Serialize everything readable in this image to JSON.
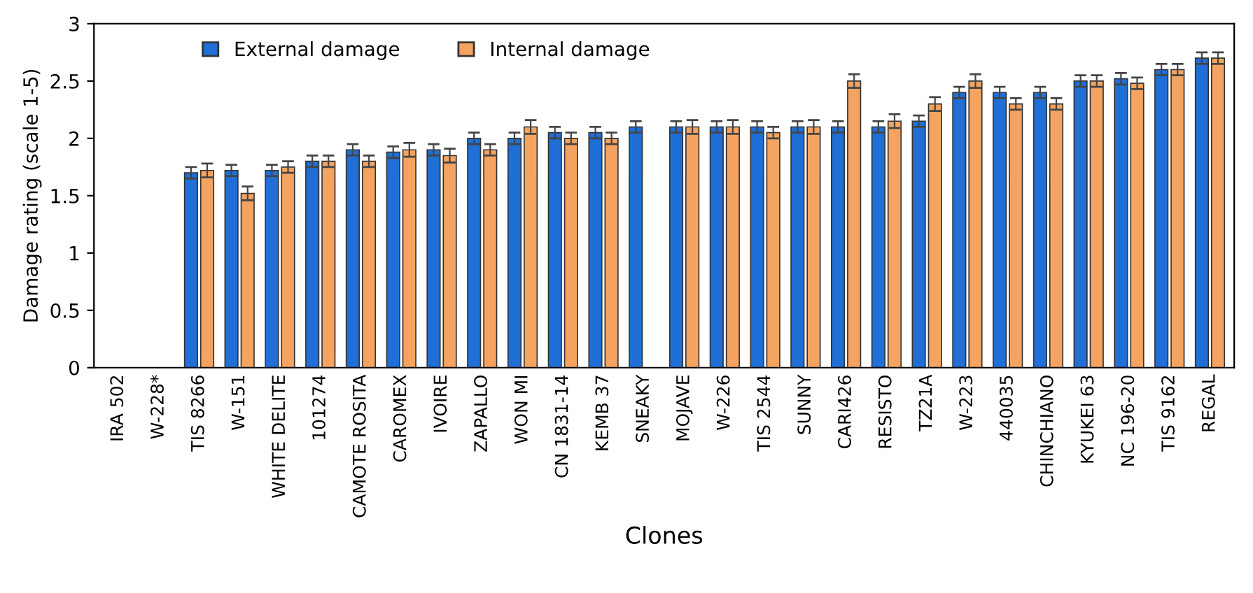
{
  "chart_data": {
    "type": "bar",
    "xlabel": "Clones",
    "ylabel": "Damage rating (scale 1-5)",
    "categories": [
      "IRA 502",
      "W-228*",
      "TIS 8266",
      "W-151",
      "WHITE DELITE",
      "101274",
      "CAMOTE ROSITA",
      "CAROMEX",
      "IVOIRE",
      "ZAPALLO",
      "WON MI",
      "CN 1831-14",
      "KEMB 37",
      "SNEAKY",
      "MOJAVE",
      "W-226",
      "TIS 2544",
      "SUNNY",
      "CARI426",
      "RESISTO",
      "TZ21A",
      "W-223",
      "440035",
      "CHINCHIANO",
      "KYUKEI 63",
      "NC 196-20",
      "TIS 9162",
      "REGAL"
    ],
    "series": [
      {
        "name": "External damage",
        "color": "#1f6fd6",
        "values": [
          null,
          null,
          1.7,
          1.72,
          1.72,
          1.8,
          1.9,
          1.88,
          1.9,
          2.0,
          2.0,
          2.05,
          2.05,
          2.1,
          2.1,
          2.1,
          2.1,
          2.1,
          2.1,
          2.1,
          2.15,
          2.4,
          2.4,
          2.4,
          2.5,
          2.52,
          2.6,
          2.7
        ],
        "errors": [
          null,
          null,
          0.05,
          0.05,
          0.05,
          0.05,
          0.05,
          0.05,
          0.05,
          0.05,
          0.05,
          0.05,
          0.05,
          0.05,
          0.05,
          0.05,
          0.05,
          0.05,
          0.05,
          0.05,
          0.05,
          0.05,
          0.05,
          0.05,
          0.05,
          0.05,
          0.05,
          0.05
        ]
      },
      {
        "name": "Internal damage",
        "color": "#f4a460",
        "values": [
          null,
          null,
          1.72,
          1.52,
          1.75,
          1.8,
          1.8,
          1.9,
          1.85,
          1.9,
          2.1,
          2.0,
          2.0,
          null,
          2.1,
          2.1,
          2.05,
          2.1,
          2.5,
          2.15,
          2.3,
          2.5,
          2.3,
          2.3,
          2.5,
          2.48,
          2.6,
          2.7
        ],
        "errors": [
          null,
          null,
          0.06,
          0.06,
          0.05,
          0.05,
          0.05,
          0.06,
          0.06,
          0.05,
          0.06,
          0.05,
          0.05,
          null,
          0.06,
          0.06,
          0.05,
          0.06,
          0.06,
          0.06,
          0.06,
          0.06,
          0.05,
          0.05,
          0.05,
          0.05,
          0.05,
          0.05
        ]
      }
    ],
    "ylim": [
      0,
      3
    ],
    "yticks": [
      0,
      0.5,
      1,
      1.5,
      2,
      2.5,
      3
    ],
    "grid": false,
    "legend": "top left"
  }
}
